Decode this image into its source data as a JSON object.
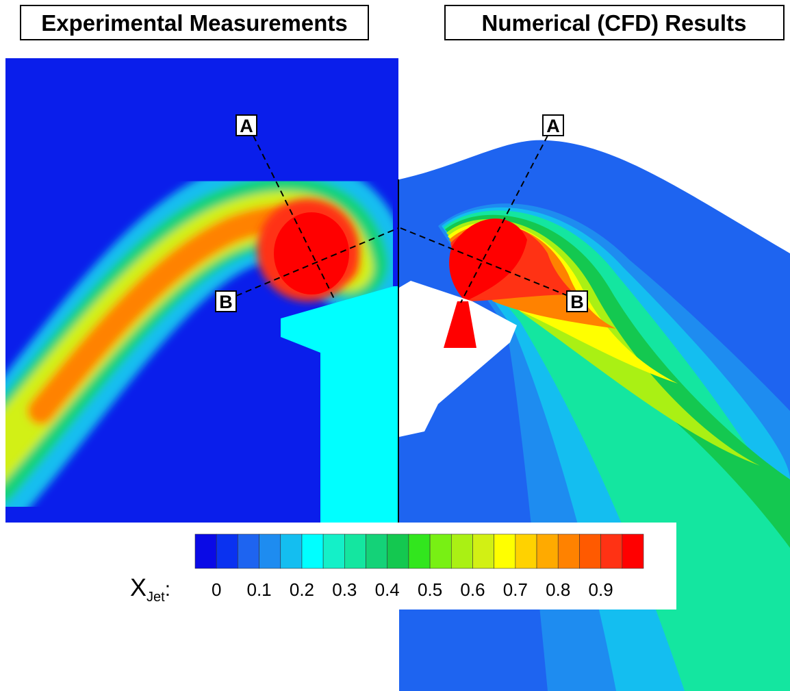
{
  "panels": [
    {
      "title": "Experimental Measurements",
      "labels": [
        "A",
        "B"
      ]
    },
    {
      "title": "Numerical (CFD) Results",
      "labels": [
        "A",
        "B"
      ]
    }
  ],
  "colorbar": {
    "label": "X",
    "label_subscript": "Jet",
    "label_suffix": ":",
    "ticks": [
      "0",
      "0.1",
      "0.2",
      "0.3",
      "0.4",
      "0.5",
      "0.6",
      "0.7",
      "0.8",
      "0.9"
    ],
    "colors": [
      "#0a0ae6",
      "#0a32f0",
      "#1e64f0",
      "#1e8cf0",
      "#14bef0",
      "#00ffff",
      "#14f0c8",
      "#14e6a0",
      "#14d278",
      "#14c850",
      "#32e61e",
      "#78f014",
      "#aaf014",
      "#d2f014",
      "#ffff00",
      "#ffd200",
      "#ffaa00",
      "#ff8200",
      "#ff5a00",
      "#ff3214",
      "#ff0000"
    ]
  }
}
